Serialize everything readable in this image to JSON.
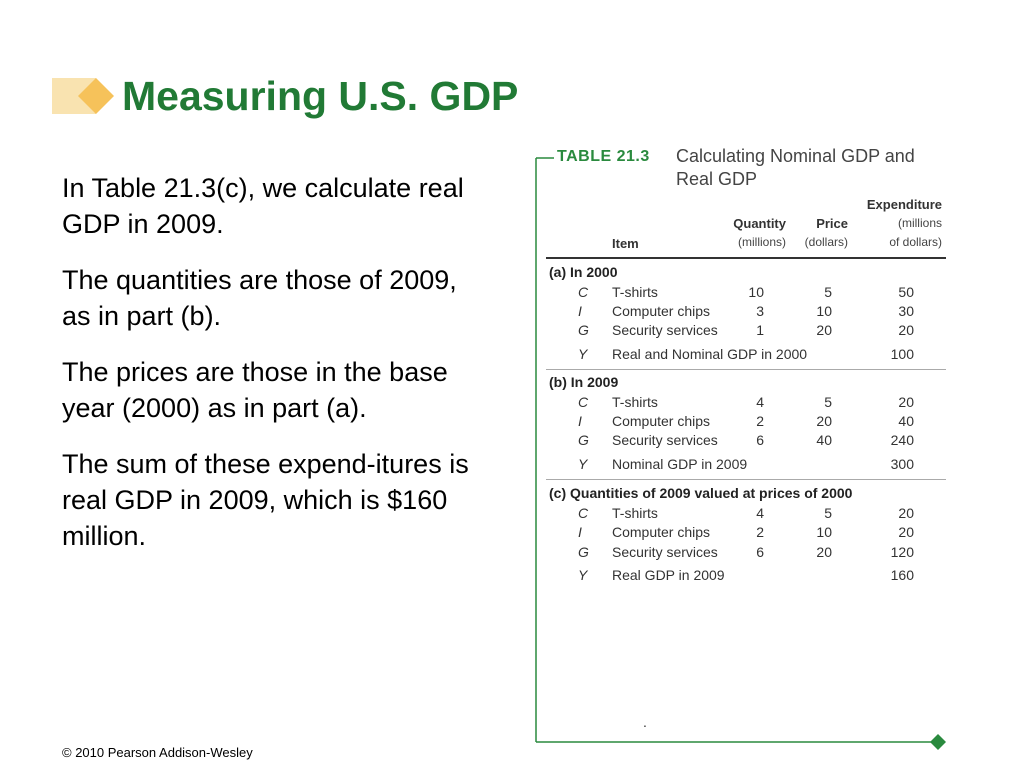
{
  "slide": {
    "title": "Measuring U.S. GDP",
    "paragraphs": [
      "In Table 21.3(c), we calculate real GDP in 2009.",
      "The quantities are those of 2009, as in part (b).",
      "The prices are those in the base year (2000) as in part (a).",
      "The sum of these expend-itures is real GDP in 2009, which is $160 million."
    ],
    "footer": "© 2010 Pearson Addison-Wesley",
    "accent_color": "#217a35",
    "deco_color": "#f6d080"
  },
  "table": {
    "label": "TABLE 21.3",
    "caption": "Calculating Nominal GDP and Real GDP",
    "headers": {
      "item": "Item",
      "quantity": "Quantity",
      "quantity_unit": "(millions)",
      "price": "Price",
      "price_unit": "(dollars)",
      "expenditure": "Expenditure",
      "expenditure_unit1": "(millions",
      "expenditure_unit2": "of dollars)"
    },
    "sections": [
      {
        "title": "(a) In 2000",
        "rows": [
          {
            "code": "C",
            "item": "T-shirts",
            "quantity": "10",
            "price": "5",
            "expenditure": "50"
          },
          {
            "code": "I",
            "item": "Computer chips",
            "quantity": "3",
            "price": "10",
            "expenditure": "30"
          },
          {
            "code": "G",
            "item": "Security services",
            "quantity": "1",
            "price": "20",
            "expenditure": "20"
          }
        ],
        "total": {
          "code": "Y",
          "item": "Real and Nominal GDP in 2000",
          "expenditure": "100"
        }
      },
      {
        "title": "(b) In 2009",
        "rows": [
          {
            "code": "C",
            "item": "T-shirts",
            "quantity": "4",
            "price": "5",
            "expenditure": "20"
          },
          {
            "code": "I",
            "item": "Computer chips",
            "quantity": "2",
            "price": "20",
            "expenditure": "40"
          },
          {
            "code": "G",
            "item": "Security services",
            "quantity": "6",
            "price": "40",
            "expenditure": "240"
          }
        ],
        "total": {
          "code": "Y",
          "item": "Nominal GDP in 2009",
          "expenditure": "300"
        }
      },
      {
        "title": "(c) Quantities of 2009 valued at prices of 2000",
        "rows": [
          {
            "code": "C",
            "item": "T-shirts",
            "quantity": "4",
            "price": "5",
            "expenditure": "20"
          },
          {
            "code": "I",
            "item": "Computer chips",
            "quantity": "2",
            "price": "10",
            "expenditure": "20"
          },
          {
            "code": "G",
            "item": "Security services",
            "quantity": "6",
            "price": "20",
            "expenditure": "120"
          }
        ],
        "total": {
          "code": "Y",
          "item": "Real GDP in 2009",
          "expenditure": "160"
        }
      }
    ],
    "frame_color": "#2a8a3e"
  }
}
